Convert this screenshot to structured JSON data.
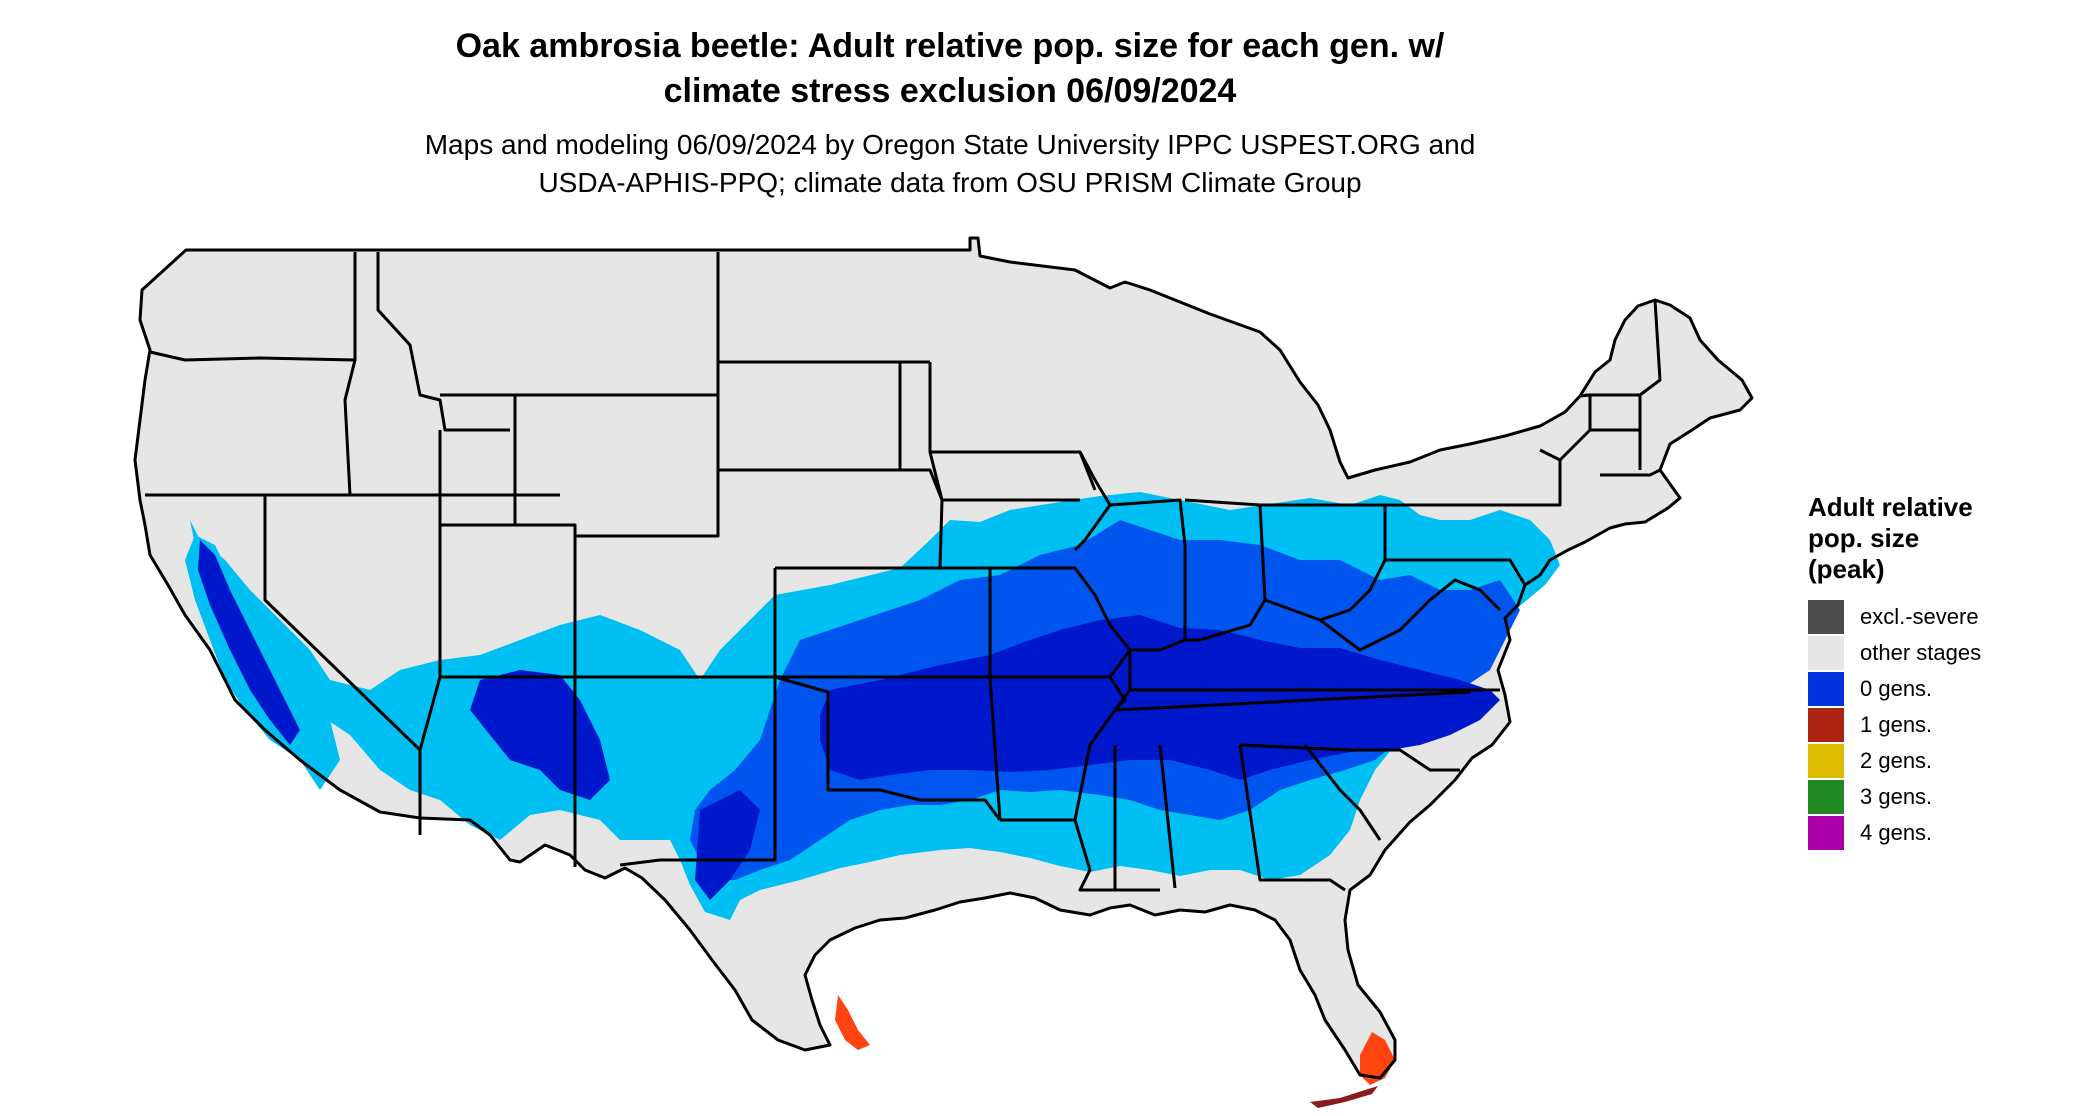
{
  "header": {
    "title_line1": "Oak ambrosia beetle: Adult relative pop. size for each gen. w/",
    "title_line2": "climate stress exclusion 06/09/2024",
    "subtitle_line1": "Maps and modeling 06/09/2024 by Oregon State University IPPC USPEST.ORG and",
    "subtitle_line2": "USDA-APHIS-PPQ; climate data from OSU PRISM Climate Group"
  },
  "legend": {
    "title_line1": "Adult relative",
    "title_line2": "pop. size",
    "title_line3": "(peak)",
    "items": [
      {
        "label": "excl.-severe",
        "color": "#4d4d4d"
      },
      {
        "label": "other stages",
        "color": "#e6e6e6"
      },
      {
        "label": "0 gens.",
        "color": "#0033dd"
      },
      {
        "label": "1 gens.",
        "color": "#aa2211"
      },
      {
        "label": "2 gens.",
        "color": "#ddbb00"
      },
      {
        "label": "3 gens.",
        "color": "#228822"
      },
      {
        "label": "4 gens.",
        "color": "#aa00aa"
      }
    ]
  },
  "map_colors": {
    "land": "#e6e6e6",
    "border": "#000000",
    "light_blue": "#00bff2",
    "mid_blue": "#0055ee",
    "dark_blue": "#0018cc",
    "orange": "#ff4411",
    "dark_red": "#8b1a1a"
  }
}
